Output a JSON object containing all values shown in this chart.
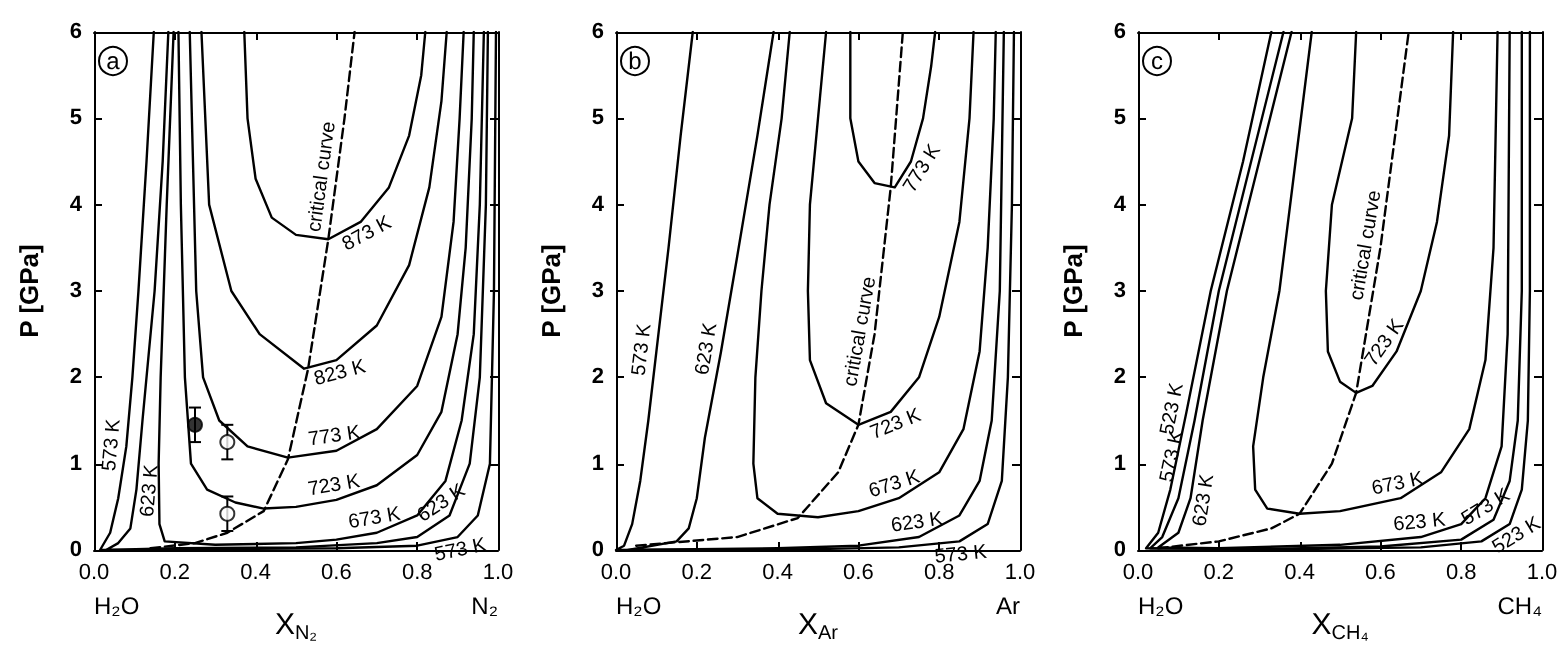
{
  "chart_data": [
    {
      "type": "line",
      "ylabel": "P [GPa]",
      "xlabel": "X$_{N₂}$",
      "xlim": [
        0,
        1
      ],
      "ylim": [
        0,
        6
      ],
      "xticks": [
        {
          "value": 0,
          "label": "0.0"
        },
        {
          "value": 0.2,
          "label": "0.2"
        },
        {
          "value": 0.4,
          "label": "0.4"
        },
        {
          "value": 0.6,
          "label": "0.6"
        },
        {
          "value": 0.8,
          "label": "0.8"
        },
        {
          "value": 1,
          "label": "1.0"
        }
      ],
      "yticks": [
        0,
        1,
        2,
        3,
        4,
        5,
        6
      ],
      "series": [
        {
          "color": "#000000",
          "x": [
            0.148,
            0.13,
            0.11,
            0.095,
            0.08,
            0.06,
            0.04,
            0.015,
            0.1,
            0.3,
            0.6,
            0.8,
            0.9,
            0.95,
            0.98,
            0.99,
            0.995
          ],
          "values": [
            6,
            4.5,
            3,
            2,
            1.2,
            0.6,
            0.2,
            0,
            0,
            0.01,
            0.02,
            0.05,
            0.15,
            0.4,
            1,
            3,
            6
          ]
        },
        {
          "color": "#000000",
          "x": [
            0.184,
            0.17,
            0.15,
            0.12,
            0.105,
            0.09,
            0.06,
            0.03,
            0.2,
            0.5,
            0.7,
            0.8,
            0.88,
            0.93,
            0.955,
            0.97,
            0.975
          ],
          "values": [
            6,
            4.5,
            3,
            1.5,
            0.7,
            0.25,
            0.08,
            0,
            0.02,
            0.03,
            0.08,
            0.15,
            0.4,
            1,
            2,
            4,
            6
          ]
        },
        {
          "color": "#000000",
          "x": [
            0.197,
            0.18,
            0.165,
            0.16,
            0.162,
            0.175,
            0.3,
            0.5,
            0.6,
            0.7,
            0.8,
            0.87,
            0.91,
            0.94,
            0.955,
            0.965
          ],
          "values": [
            6,
            4,
            2,
            1,
            0.3,
            0.1,
            0.06,
            0.08,
            0.12,
            0.2,
            0.4,
            0.8,
            1.5,
            2.5,
            4,
            6
          ]
        },
        {
          "color": "#000000",
          "x": [
            0.209,
            0.215,
            0.225,
            0.24,
            0.28,
            0.35,
            0.42,
            0.5,
            0.6,
            0.7,
            0.8,
            0.86,
            0.9,
            0.92,
            0.935,
            0.94
          ],
          "values": [
            6,
            4,
            2,
            1,
            0.7,
            0.55,
            0.48,
            0.5,
            0.58,
            0.75,
            1.1,
            1.6,
            2.5,
            3.5,
            5,
            6
          ]
        },
        {
          "color": "#000000",
          "x": [
            0.237,
            0.253,
            0.27,
            0.31,
            0.38,
            0.48,
            0.6,
            0.7,
            0.8,
            0.86,
            0.89,
            0.905,
            0.915
          ],
          "values": [
            6,
            3,
            2,
            1.5,
            1.2,
            1.07,
            1.15,
            1.4,
            1.9,
            2.7,
            3.8,
            5,
            6
          ]
        },
        {
          "color": "#000000",
          "x": [
            0.266,
            0.285,
            0.34,
            0.41,
            0.52,
            0.6,
            0.7,
            0.78,
            0.83,
            0.86,
            0.873
          ],
          "values": [
            6,
            4,
            3,
            2.5,
            2.1,
            2.2,
            2.6,
            3.3,
            4.2,
            5.2,
            6
          ]
        },
        {
          "color": "#000000",
          "x": [
            0.372,
            0.38,
            0.4,
            0.44,
            0.5,
            0.58,
            0.66,
            0.73,
            0.78,
            0.81,
            0.82
          ],
          "values": [
            6,
            5,
            4.3,
            3.85,
            3.65,
            3.6,
            3.8,
            4.2,
            4.8,
            5.5,
            6
          ]
        },
        {
          "color": "#000000",
          "line_style": "dashed",
          "x": [
            0.14,
            0.25,
            0.33,
            0.42,
            0.48,
            0.53,
            0.58,
            0.62,
            0.645
          ],
          "values": [
            0.02,
            0.08,
            0.2,
            0.45,
            1.05,
            2.1,
            3.6,
            5,
            6
          ]
        },
        {
          "type": "scatter",
          "marker": "circle",
          "color": "#000000",
          "x": [
            0.25
          ],
          "values": [
            1.45
          ],
          "errors": [
            0.2
          ]
        },
        {
          "type": "scatter",
          "marker": "circle",
          "color": "#ffffff",
          "x": [
            0.33,
            0.33
          ],
          "values": [
            1.25,
            0.42
          ],
          "errors": [
            0.2,
            0.2
          ]
        }
      ],
      "annotations": [
        "a",
        "H₂O",
        "N₂",
        {
          "text": "573 K",
          "x": 0.08,
          "y": 1.2
        },
        {
          "text": "623 K",
          "x": 0.105,
          "y": 0.7
        },
        {
          "text": "873 K",
          "x": 0.66,
          "y": 3.8
        },
        {
          "text": "823 K",
          "x": 0.6,
          "y": 2.2
        },
        {
          "text": "773 K",
          "x": 0.6,
          "y": 1.15
        },
        {
          "text": "723 K",
          "x": 0.6,
          "y": 0.58
        },
        {
          "text": "673 K",
          "x": 0.7,
          "y": 0.2
        },
        {
          "text": "623 K",
          "x": 0.88,
          "y": 0.4
        },
        {
          "text": "573 K",
          "x": 0.9,
          "y": 0.15
        },
        {
          "text": "critical curve",
          "x": 0.6,
          "y": 4.3
        }
      ]
    },
    {
      "type": "line",
      "ylabel": "P [GPa]",
      "xlabel": "X$_{Ar}$",
      "xlim": [
        0,
        1
      ],
      "ylim": [
        0,
        6
      ],
      "xticks": [
        {
          "value": 0,
          "label": "0.0"
        },
        {
          "value": 0.2,
          "label": "0.2"
        },
        {
          "value": 0.4,
          "label": "0.4"
        },
        {
          "value": 0.6,
          "label": "0.6"
        },
        {
          "value": 0.8,
          "label": "0.8"
        },
        {
          "value": 1,
          "label": "1.0"
        }
      ],
      "yticks": [
        0,
        1,
        2,
        3,
        4,
        5,
        6
      ],
      "series": [
        {
          "color": "#000000",
          "x": [
            0.19,
            0.16,
            0.13,
            0.1,
            0.08,
            0.06,
            0.04,
            0.02,
            0,
            0.5,
            0.7,
            0.85,
            0.92,
            0.955,
            0.97,
            0.98,
            0.985
          ],
          "values": [
            6,
            4.8,
            3.5,
            2.3,
            1.5,
            0.8,
            0.3,
            0.05,
            0,
            0.01,
            0.03,
            0.1,
            0.3,
            0.8,
            2,
            4,
            6
          ]
        },
        {
          "color": "#000000",
          "x": [
            0.39,
            0.35,
            0.3,
            0.26,
            0.22,
            0.2,
            0.18,
            0.15,
            0.03,
            0.4,
            0.6,
            0.75,
            0.85,
            0.9,
            0.93,
            0.95,
            0.96
          ],
          "values": [
            6,
            4.8,
            3.4,
            2.3,
            1.3,
            0.6,
            0.25,
            0.1,
            0,
            0.02,
            0.05,
            0.15,
            0.4,
            0.8,
            1.5,
            3,
            6
          ]
        },
        {
          "color": "#000000",
          "x": [
            0.43,
            0.41,
            0.38,
            0.36,
            0.345,
            0.34,
            0.35,
            0.4,
            0.5,
            0.6,
            0.7,
            0.8,
            0.86,
            0.9,
            0.92,
            0.935,
            0.94
          ],
          "values": [
            6,
            5,
            4,
            3,
            2,
            1,
            0.6,
            0.42,
            0.38,
            0.45,
            0.6,
            0.9,
            1.4,
            2.3,
            3.5,
            5,
            6
          ]
        },
        {
          "color": "#000000",
          "x": [
            0.52,
            0.5,
            0.48,
            0.475,
            0.48,
            0.52,
            0.6,
            0.68,
            0.75,
            0.8,
            0.85,
            0.875,
            0.885
          ],
          "values": [
            6,
            5,
            4,
            3,
            2.2,
            1.7,
            1.45,
            1.6,
            2,
            2.7,
            3.8,
            5,
            6
          ]
        },
        {
          "color": "#000000",
          "x": [
            0.58,
            0.58,
            0.6,
            0.64,
            0.69,
            0.73,
            0.76,
            0.78,
            0.79
          ],
          "values": [
            6,
            5,
            4.5,
            4.25,
            4.2,
            4.5,
            5,
            5.6,
            6
          ]
        },
        {
          "color": "#000000",
          "line_style": "dashed",
          "x": [
            0.05,
            0.3,
            0.45,
            0.55,
            0.6,
            0.64,
            0.68,
            0.71
          ],
          "values": [
            0.05,
            0.15,
            0.37,
            0.9,
            1.45,
            2.5,
            4.2,
            6
          ]
        }
      ],
      "annotations": [
        "b",
        "H₂O",
        "Ar",
        {
          "text": "573 K",
          "x": 0.1,
          "y": 2.3
        },
        {
          "text": "623 K",
          "x": 0.26,
          "y": 2.3
        },
        {
          "text": "673 K",
          "x": 0.7,
          "y": 0.6
        },
        {
          "text": "723 K",
          "x": 0.68,
          "y": 1.6
        },
        {
          "text": "773 K",
          "x": 0.73,
          "y": 4.5
        },
        {
          "text": "623 K",
          "x": 0.75,
          "y": 0.15
        },
        {
          "text": "573 K",
          "x": 0.85,
          "y": 0.1
        },
        {
          "text": "critical curve",
          "x": 0.64,
          "y": 2.5
        }
      ]
    },
    {
      "type": "line",
      "ylabel": "P [GPa]",
      "xlabel": "X$_{CH₄}$",
      "xlim": [
        0,
        1
      ],
      "ylim": [
        0,
        6
      ],
      "xticks": [
        {
          "value": 0,
          "label": "0.0"
        },
        {
          "value": 0.2,
          "label": "0.2"
        },
        {
          "value": 0.4,
          "label": "0.4"
        },
        {
          "value": 0.6,
          "label": "0.6"
        },
        {
          "value": 0.8,
          "label": "0.8"
        },
        {
          "value": 1,
          "label": "1.0"
        }
      ],
      "yticks": [
        0,
        1,
        2,
        3,
        4,
        5,
        6
      ],
      "series": [
        {
          "color": "#000000",
          "x": [
            0.33,
            0.26,
            0.18,
            0.12,
            0.08,
            0.05,
            0.02,
            0.4,
            0.7,
            0.85,
            0.92,
            0.95,
            0.965,
            0.97,
            0.97
          ],
          "values": [
            6,
            4.5,
            3,
            1.6,
            0.7,
            0.2,
            0.02,
            0.01,
            0.03,
            0.1,
            0.3,
            0.7,
            1.5,
            3,
            6
          ]
        },
        {
          "color": "#000000",
          "x": [
            0.36,
            0.28,
            0.2,
            0.14,
            0.1,
            0.06,
            0.03,
            0.3,
            0.6,
            0.8,
            0.88,
            0.92,
            0.94,
            0.95,
            0.95
          ],
          "values": [
            6,
            4.5,
            3,
            1.5,
            0.6,
            0.15,
            0.02,
            0.01,
            0.04,
            0.12,
            0.35,
            0.8,
            1.5,
            3,
            6
          ]
        },
        {
          "color": "#000000",
          "x": [
            0.38,
            0.3,
            0.22,
            0.16,
            0.13,
            0.1,
            0.05,
            0.2,
            0.5,
            0.7,
            0.8,
            0.86,
            0.9,
            0.915,
            0.92
          ],
          "values": [
            6,
            4.5,
            3,
            1.5,
            0.6,
            0.2,
            0.03,
            0.02,
            0.06,
            0.15,
            0.3,
            0.6,
            1.2,
            2.5,
            6
          ]
        },
        {
          "color": "#000000",
          "x": [
            0.43,
            0.39,
            0.35,
            0.31,
            0.285,
            0.29,
            0.32,
            0.4,
            0.5,
            0.65,
            0.75,
            0.82,
            0.86,
            0.88,
            0.89
          ],
          "values": [
            6,
            4.5,
            3,
            2,
            1.2,
            0.7,
            0.48,
            0.42,
            0.45,
            0.6,
            0.9,
            1.4,
            2.2,
            3.5,
            6
          ]
        },
        {
          "color": "#000000",
          "x": [
            0.54,
            0.53,
            0.48,
            0.465,
            0.47,
            0.5,
            0.54,
            0.58,
            0.64,
            0.7,
            0.74,
            0.77,
            0.78
          ],
          "values": [
            6,
            5,
            4,
            3,
            2.3,
            1.95,
            1.82,
            1.9,
            2.3,
            3,
            3.8,
            4.8,
            6
          ]
        },
        {
          "color": "#000000",
          "line_style": "dashed",
          "x": [
            0.05,
            0.2,
            0.33,
            0.4,
            0.48,
            0.54,
            0.6,
            0.67
          ],
          "values": [
            0.02,
            0.1,
            0.25,
            0.42,
            1,
            1.82,
            3.5,
            6
          ]
        }
      ],
      "annotations": [
        "c",
        "H₂O",
        "CH₄",
        {
          "text": "523 K",
          "x": 0.12,
          "y": 1.6
        },
        {
          "text": "573 K",
          "x": 0.12,
          "y": 1.05
        },
        {
          "text": "623 K",
          "x": 0.13,
          "y": 0.6
        },
        {
          "text": "673 K",
          "x": 0.65,
          "y": 0.6
        },
        {
          "text": "723 K",
          "x": 0.64,
          "y": 2.3
        },
        {
          "text": "623 K",
          "x": 0.7,
          "y": 0.15
        },
        {
          "text": "573 K",
          "x": 0.88,
          "y": 0.35
        },
        {
          "text": "523 K",
          "x": 0.92,
          "y": 0.3
        },
        {
          "text": "critical curve",
          "x": 0.6,
          "y": 3.5
        }
      ]
    }
  ]
}
